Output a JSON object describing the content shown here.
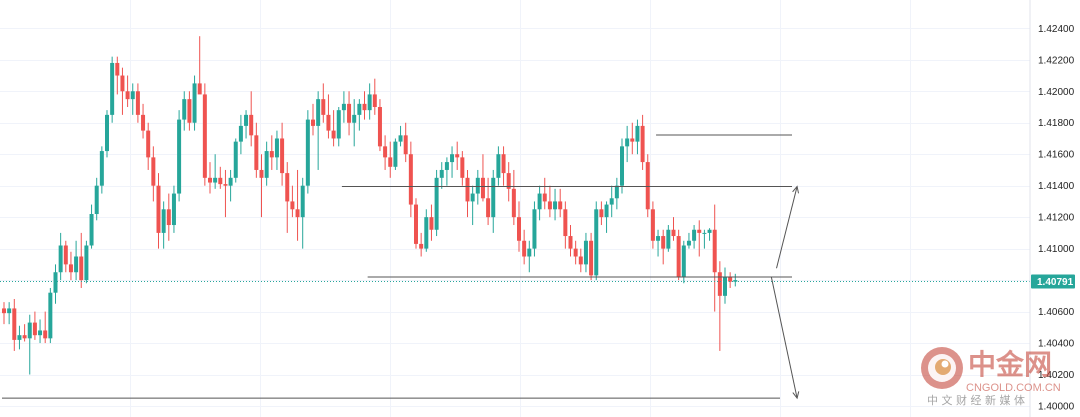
{
  "chart_data": {
    "type": "candlestick",
    "y_axis": {
      "position": "right",
      "ticks": [
        "1.42400",
        "1.42200",
        "1.42000",
        "1.41800",
        "1.41600",
        "1.41400",
        "1.41200",
        "1.41000",
        "1.40800",
        "1.40600",
        "1.40400",
        "1.40200",
        "1.40000"
      ],
      "ylim": [
        1.4,
        1.4258
      ]
    },
    "current_price": "1.40791",
    "grid": true,
    "colors": {
      "up": "#26a69a",
      "down": "#ef5350",
      "price_line": "#26a69a",
      "price_label_bg": "#26a69a",
      "drawing": "#555555",
      "grid": "#f0f3fa"
    },
    "candles": [
      [
        1.4062,
        1.4066,
        1.4052,
        1.4059
      ],
      [
        1.4059,
        1.4066,
        1.4052,
        1.4062
      ],
      [
        1.4062,
        1.4068,
        1.4035,
        1.4042
      ],
      [
        1.4042,
        1.4051,
        1.4036,
        1.4045
      ],
      [
        1.4045,
        1.4052,
        1.4041,
        1.4043
      ],
      [
        1.4043,
        1.4058,
        1.402,
        1.4053
      ],
      [
        1.4053,
        1.406,
        1.4042,
        1.4045
      ],
      [
        1.4045,
        1.4055,
        1.404,
        1.4048
      ],
      [
        1.4048,
        1.406,
        1.404,
        1.4043
      ],
      [
        1.4043,
        1.4075,
        1.404,
        1.4072
      ],
      [
        1.4072,
        1.409,
        1.4065,
        1.4085
      ],
      [
        1.4085,
        1.411,
        1.408,
        1.4102
      ],
      [
        1.4102,
        1.4105,
        1.4085,
        1.409
      ],
      [
        1.409,
        1.4098,
        1.408,
        1.4085
      ],
      [
        1.4085,
        1.4105,
        1.408,
        1.4095
      ],
      [
        1.4095,
        1.411,
        1.4075,
        1.408
      ],
      [
        1.408,
        1.4105,
        1.4078,
        1.4102
      ],
      [
        1.4102,
        1.4128,
        1.41,
        1.4122
      ],
      [
        1.4122,
        1.4145,
        1.4118,
        1.414
      ],
      [
        1.414,
        1.4165,
        1.4135,
        1.4162
      ],
      [
        1.4162,
        1.4188,
        1.4158,
        1.4185
      ],
      [
        1.4185,
        1.4222,
        1.418,
        1.4218
      ],
      [
        1.4218,
        1.4222,
        1.4198,
        1.421
      ],
      [
        1.421,
        1.4215,
        1.4185,
        1.42
      ],
      [
        1.42,
        1.421,
        1.419,
        1.4195
      ],
      [
        1.4195,
        1.4205,
        1.4185,
        1.42
      ],
      [
        1.42,
        1.4205,
        1.418,
        1.4185
      ],
      [
        1.4185,
        1.4192,
        1.417,
        1.4175
      ],
      [
        1.4175,
        1.418,
        1.415,
        1.4158
      ],
      [
        1.4158,
        1.4165,
        1.413,
        1.414
      ],
      [
        1.414,
        1.4148,
        1.41,
        1.411
      ],
      [
        1.411,
        1.413,
        1.41,
        1.4125
      ],
      [
        1.4125,
        1.4135,
        1.4105,
        1.4115
      ],
      [
        1.4115,
        1.414,
        1.411,
        1.4135
      ],
      [
        1.4135,
        1.4188,
        1.413,
        1.4182
      ],
      [
        1.4182,
        1.42,
        1.4175,
        1.4195
      ],
      [
        1.4195,
        1.42,
        1.4175,
        1.418
      ],
      [
        1.418,
        1.421,
        1.4175,
        1.4205
      ],
      [
        1.4205,
        1.4235,
        1.42,
        1.4198
      ],
      [
        1.4198,
        1.4205,
        1.414,
        1.4145
      ],
      [
        1.4145,
        1.4155,
        1.4135,
        1.4142
      ],
      [
        1.4142,
        1.416,
        1.4138,
        1.4145
      ],
      [
        1.4145,
        1.4152,
        1.4138,
        1.4141
      ],
      [
        1.4141,
        1.415,
        1.412,
        1.414
      ],
      [
        1.414,
        1.415,
        1.413,
        1.4145
      ],
      [
        1.4145,
        1.417,
        1.4142,
        1.4168
      ],
      [
        1.4168,
        1.4185,
        1.416,
        1.4178
      ],
      [
        1.4178,
        1.4188,
        1.417,
        1.4185
      ],
      [
        1.4185,
        1.42,
        1.4165,
        1.4172
      ],
      [
        1.4172,
        1.418,
        1.4145,
        1.415
      ],
      [
        1.415,
        1.416,
        1.412,
        1.4145
      ],
      [
        1.4145,
        1.4168,
        1.414,
        1.4162
      ],
      [
        1.4162,
        1.4172,
        1.415,
        1.4158
      ],
      [
        1.4158,
        1.4175,
        1.415,
        1.417
      ],
      [
        1.417,
        1.418,
        1.414,
        1.4148
      ],
      [
        1.4148,
        1.4155,
        1.411,
        1.413
      ],
      [
        1.413,
        1.414,
        1.412,
        1.4125
      ],
      [
        1.4125,
        1.415,
        1.4105,
        1.412
      ],
      [
        1.412,
        1.4145,
        1.41,
        1.414
      ],
      [
        1.414,
        1.4188,
        1.4135,
        1.4182
      ],
      [
        1.4182,
        1.4192,
        1.4172,
        1.4178
      ],
      [
        1.4178,
        1.42,
        1.415,
        1.4195
      ],
      [
        1.4195,
        1.4205,
        1.418,
        1.4185
      ],
      [
        1.4185,
        1.4198,
        1.417,
        1.4175
      ],
      [
        1.4175,
        1.4188,
        1.4165,
        1.417
      ],
      [
        1.417,
        1.419,
        1.4165,
        1.4188
      ],
      [
        1.4188,
        1.42,
        1.418,
        1.4192
      ],
      [
        1.4192,
        1.42,
        1.4172,
        1.418
      ],
      [
        1.418,
        1.4195,
        1.4165,
        1.4185
      ],
      [
        1.4185,
        1.4195,
        1.4175,
        1.4192
      ],
      [
        1.4192,
        1.42,
        1.4182,
        1.4188
      ],
      [
        1.4188,
        1.4205,
        1.4182,
        1.4198
      ],
      [
        1.4198,
        1.4208,
        1.4185,
        1.419
      ],
      [
        1.419,
        1.4195,
        1.4162,
        1.4165
      ],
      [
        1.4165,
        1.4172,
        1.415,
        1.4158
      ],
      [
        1.4158,
        1.4168,
        1.4145,
        1.4152
      ],
      [
        1.4152,
        1.417,
        1.415,
        1.4168
      ],
      [
        1.4168,
        1.4178,
        1.4165,
        1.4172
      ],
      [
        1.4172,
        1.418,
        1.4155,
        1.416
      ],
      [
        1.416,
        1.4168,
        1.412,
        1.4128
      ],
      [
        1.4128,
        1.4132,
        1.41,
        1.4103
      ],
      [
        1.4103,
        1.411,
        1.4095,
        1.41
      ],
      [
        1.41,
        1.4125,
        1.4098,
        1.412
      ],
      [
        1.412,
        1.4128,
        1.4105,
        1.4112
      ],
      [
        1.4112,
        1.415,
        1.4108,
        1.4145
      ],
      [
        1.4145,
        1.4155,
        1.4138,
        1.415
      ],
      [
        1.415,
        1.4158,
        1.414,
        1.4155
      ],
      [
        1.4155,
        1.4165,
        1.4145,
        1.416
      ],
      [
        1.416,
        1.4168,
        1.415,
        1.4158
      ],
      [
        1.4158,
        1.4162,
        1.414,
        1.4145
      ],
      [
        1.4145,
        1.415,
        1.412,
        1.413
      ],
      [
        1.413,
        1.414,
        1.4115,
        1.4135
      ],
      [
        1.4135,
        1.415,
        1.4128,
        1.4145
      ],
      [
        1.4145,
        1.416,
        1.413,
        1.4132
      ],
      [
        1.4132,
        1.4145,
        1.4115,
        1.412
      ],
      [
        1.412,
        1.415,
        1.411,
        1.4145
      ],
      [
        1.4145,
        1.4165,
        1.414,
        1.416
      ],
      [
        1.416,
        1.4165,
        1.414,
        1.4148
      ],
      [
        1.4148,
        1.4155,
        1.413,
        1.4138
      ],
      [
        1.4138,
        1.415,
        1.4115,
        1.412
      ],
      [
        1.412,
        1.413,
        1.4098,
        1.4105
      ],
      [
        1.4105,
        1.4112,
        1.409,
        1.4095
      ],
      [
        1.4095,
        1.4105,
        1.4085,
        1.41
      ],
      [
        1.41,
        1.413,
        1.4095,
        1.4125
      ],
      [
        1.4125,
        1.414,
        1.4118,
        1.4135
      ],
      [
        1.4135,
        1.4145,
        1.4125,
        1.413
      ],
      [
        1.413,
        1.414,
        1.412,
        1.4125
      ],
      [
        1.4125,
        1.4138,
        1.4118,
        1.413
      ],
      [
        1.413,
        1.4138,
        1.412,
        1.4125
      ],
      [
        1.4125,
        1.413,
        1.41,
        1.4108
      ],
      [
        1.4108,
        1.4115,
        1.4095,
        1.41
      ],
      [
        1.41,
        1.4105,
        1.409,
        1.4095
      ],
      [
        1.4095,
        1.41,
        1.4085,
        1.409
      ],
      [
        1.409,
        1.411,
        1.4085,
        1.4105
      ],
      [
        1.4105,
        1.411,
        1.408,
        1.4083
      ],
      [
        1.4083,
        1.413,
        1.408,
        1.4125
      ],
      [
        1.4125,
        1.413,
        1.4115,
        1.412
      ],
      [
        1.412,
        1.413,
        1.411,
        1.4128
      ],
      [
        1.4128,
        1.414,
        1.412,
        1.4132
      ],
      [
        1.4132,
        1.4145,
        1.4125,
        1.414
      ],
      [
        1.414,
        1.417,
        1.4135,
        1.4165
      ],
      [
        1.4165,
        1.4178,
        1.4155,
        1.417
      ],
      [
        1.417,
        1.418,
        1.416,
        1.4168
      ],
      [
        1.4168,
        1.4182,
        1.416,
        1.4178
      ],
      [
        1.4178,
        1.4185,
        1.415,
        1.4155
      ],
      [
        1.4155,
        1.416,
        1.412,
        1.4125
      ],
      [
        1.4125,
        1.413,
        1.41,
        1.4105
      ],
      [
        1.4105,
        1.4112,
        1.4095,
        1.4108
      ],
      [
        1.4108,
        1.4112,
        1.409,
        1.41
      ],
      [
        1.41,
        1.4115,
        1.4098,
        1.4112
      ],
      [
        1.4112,
        1.412,
        1.4105,
        1.4108
      ],
      [
        1.4108,
        1.4112,
        1.408,
        1.4082
      ],
      [
        1.4082,
        1.4105,
        1.4078,
        1.4102
      ],
      [
        1.4102,
        1.411,
        1.41,
        1.4105
      ],
      [
        1.4105,
        1.4115,
        1.41,
        1.4112
      ],
      [
        1.4112,
        1.4118,
        1.4095,
        1.411
      ],
      [
        1.411,
        1.4112,
        1.41,
        1.411
      ],
      [
        1.411,
        1.4113,
        1.4105,
        1.4112
      ],
      [
        1.4112,
        1.4128,
        1.406,
        1.4085
      ],
      [
        1.4085,
        1.4092,
        1.4035,
        1.407
      ],
      [
        1.407,
        1.4088,
        1.4065,
        1.4082
      ],
      [
        1.4082,
        1.4085,
        1.4075,
        1.4079
      ],
      [
        1.4079,
        1.4084,
        1.4076,
        1.408
      ]
    ]
  },
  "drawings": {
    "horizontal_levels": [
      {
        "price": 1.41722,
        "from_bar": 127,
        "to_bar": "right_end"
      },
      {
        "price": 1.41395,
        "from_bar": 66,
        "to_bar": "right_end"
      },
      {
        "price": 1.4082,
        "from_bar": 71,
        "to_bar": "right_end"
      },
      {
        "price": 1.4005,
        "from_bar": 0,
        "to_bar": "right_end"
      }
    ],
    "arrows": [
      {
        "from": [
          150,
          1.40875
        ],
        "to": [
          154,
          1.41395
        ]
      },
      {
        "from": [
          149,
          1.4082
        ],
        "to": [
          154,
          1.4005
        ]
      }
    ]
  },
  "watermark": {
    "brand": "中金网",
    "domain": "CNGOLD.COM.CN",
    "tagline": "中 文 财 经 新 媒 体",
    "color": "#c0392b"
  }
}
